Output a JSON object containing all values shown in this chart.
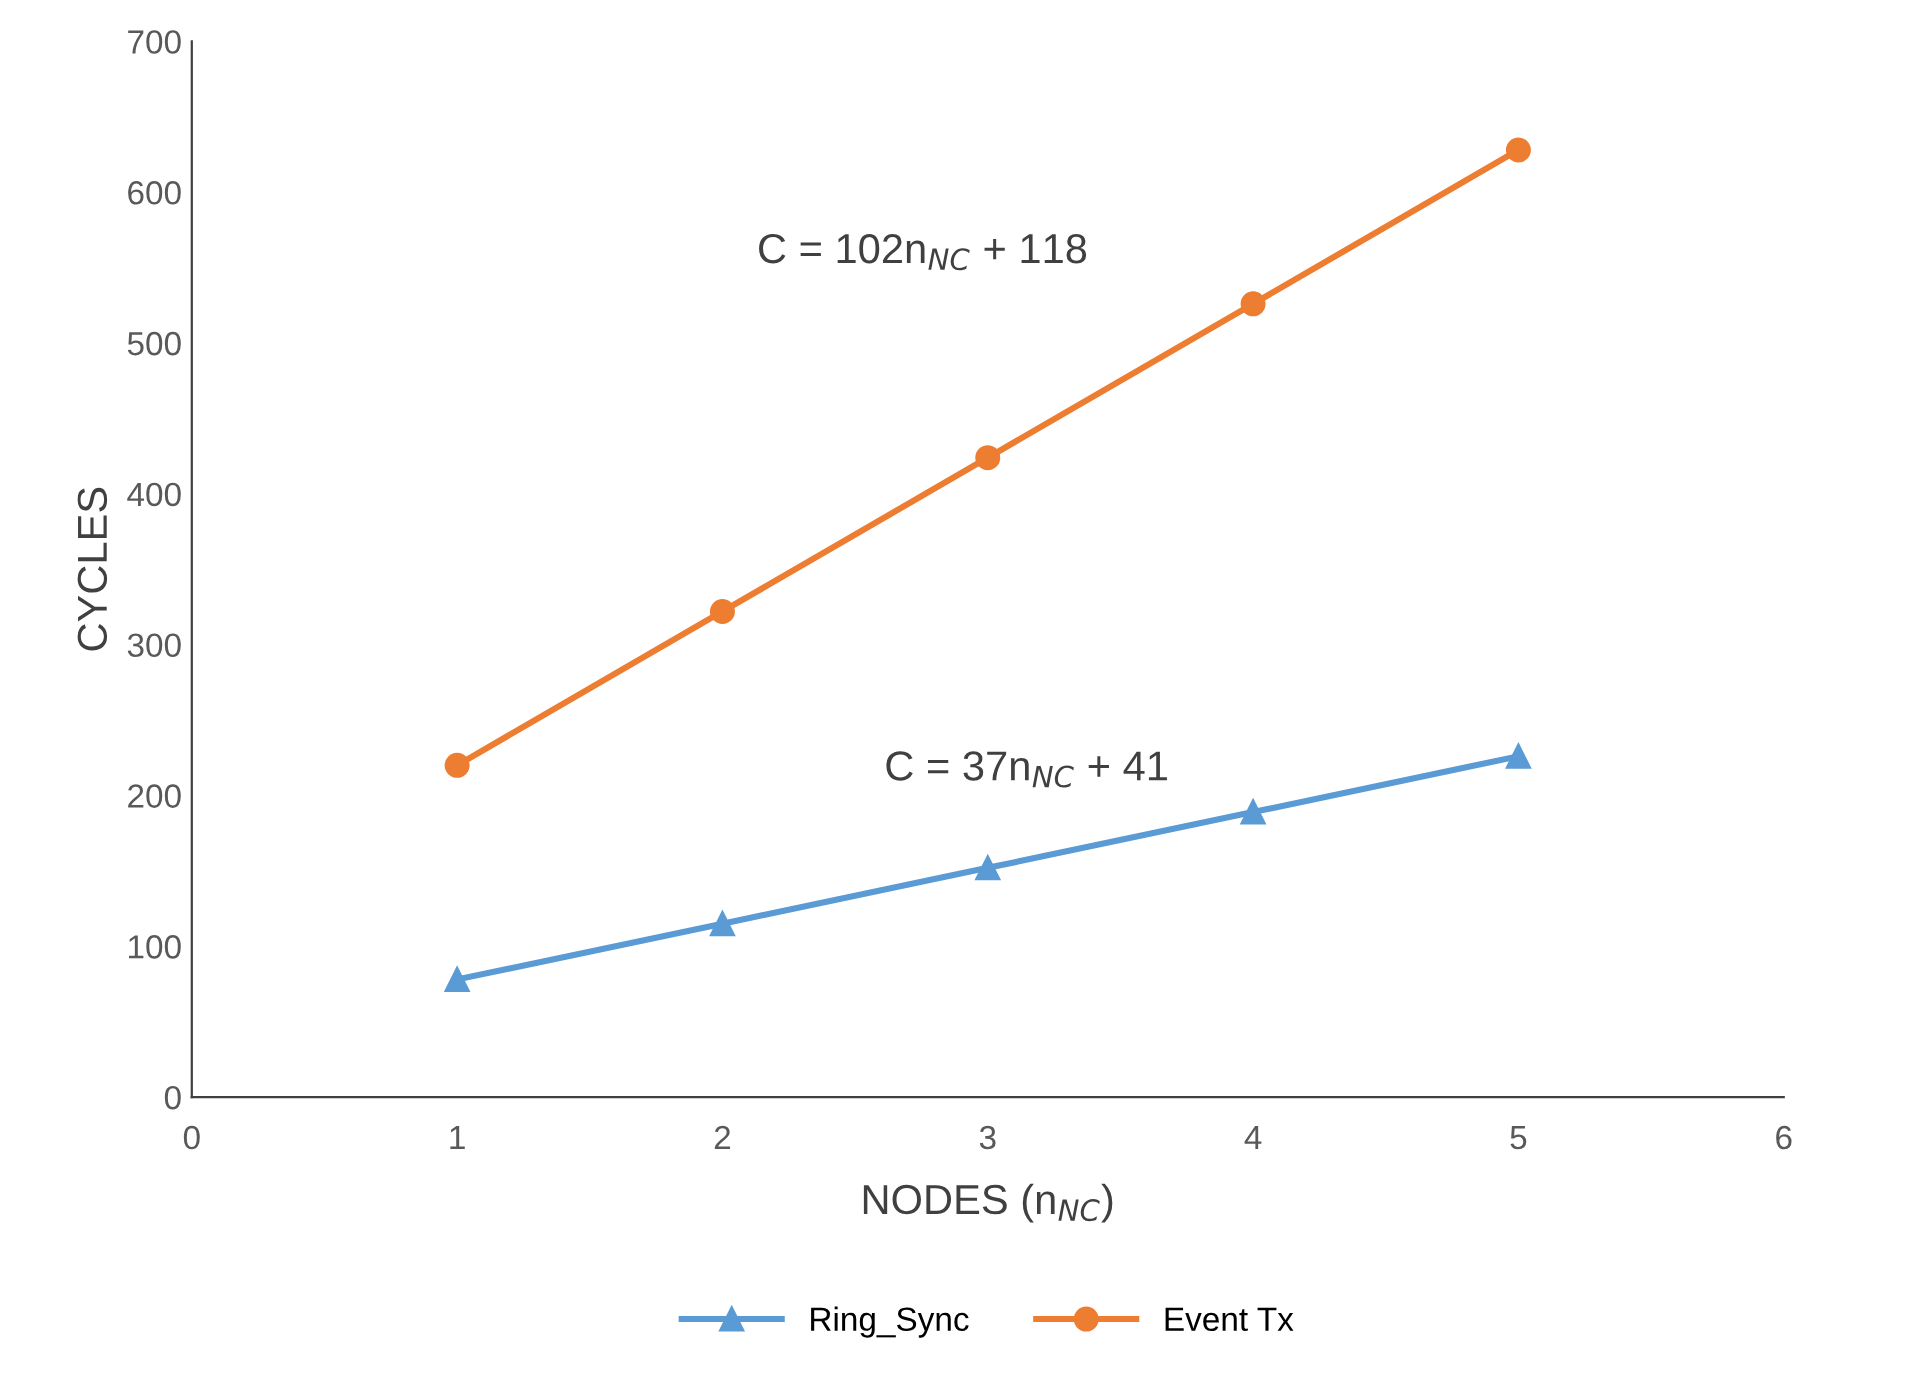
{
  "chart_data": {
    "type": "line",
    "xlabel": "NODES (n$_{NC}$)",
    "ylabel": "CYCLES",
    "x": [
      1,
      2,
      3,
      4,
      5
    ],
    "series": [
      {
        "name": "Ring_Sync",
        "color": "#5b9bd5",
        "marker": "triangle",
        "values": [
          78,
          115,
          152,
          189,
          226
        ]
      },
      {
        "name": "Event Tx",
        "color": "#ed7d31",
        "marker": "circle",
        "values": [
          220,
          322,
          424,
          526,
          628
        ]
      }
    ],
    "annotations": [
      "C = 102n$_{NC}$ + 118",
      "C = 37n$_{NC}$ + 41"
    ],
    "xlim": [
      0,
      6
    ],
    "xticks": [
      0,
      1,
      2,
      3,
      4,
      5,
      6
    ],
    "ylim": [
      0,
      700
    ],
    "yticks": [
      0,
      100,
      200,
      300,
      400,
      500,
      600,
      700
    ],
    "grid": false,
    "legend": "bottom",
    "line_style": "solid"
  }
}
